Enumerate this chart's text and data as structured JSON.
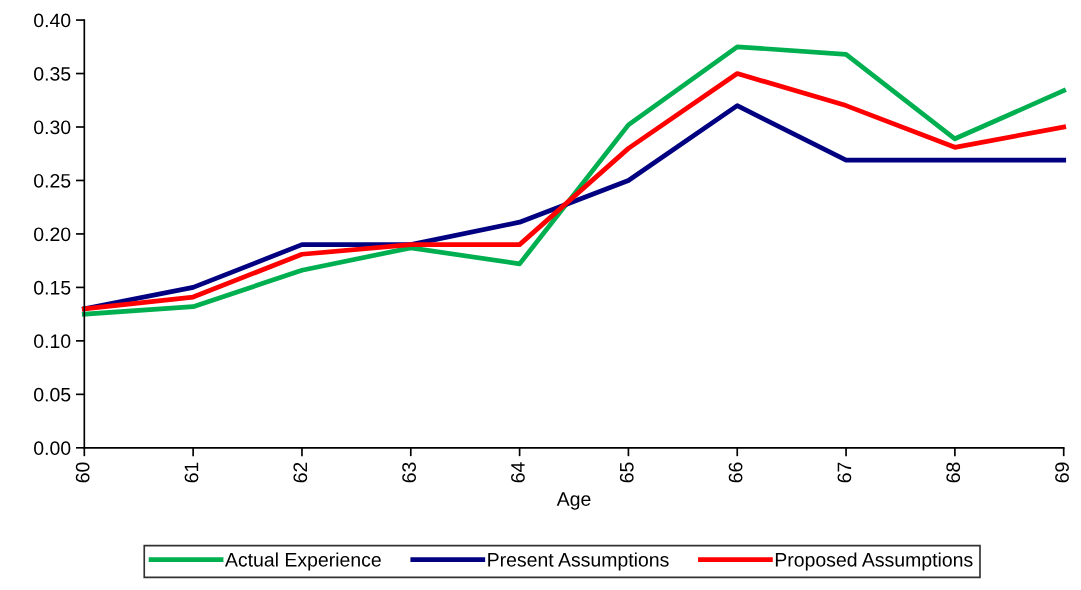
{
  "chart_data": {
    "type": "line",
    "xlabel": "Age",
    "x": [
      60,
      61,
      62,
      63,
      64,
      65,
      66,
      67,
      68,
      69
    ],
    "xlim": [
      60,
      69
    ],
    "xticks": [
      60,
      61,
      62,
      63,
      64,
      65,
      66,
      67,
      68,
      69
    ],
    "ylim": [
      0,
      0.4
    ],
    "yticks": [
      {
        "value": 0,
        "label": "0.00"
      },
      {
        "value": 0.05,
        "label": "0.05"
      },
      {
        "value": 0.1,
        "label": "0.10"
      },
      {
        "value": 0.15,
        "label": "0.15"
      },
      {
        "value": 0.2,
        "label": "0.20"
      },
      {
        "value": 0.25,
        "label": "0.25"
      },
      {
        "value": 0.3,
        "label": "0.30"
      },
      {
        "value": 0.35,
        "label": "0.35"
      },
      {
        "value": 0.4,
        "label": "0.40"
      }
    ],
    "series": [
      {
        "name": "Actual Experience",
        "color": "#00b050",
        "values": [
          0.125,
          0.132,
          0.166,
          0.187,
          0.172,
          0.302,
          0.375,
          0.368,
          0.289,
          0.334
        ]
      },
      {
        "name": "Present Assumptions",
        "color": "#000080",
        "values": [
          0.13,
          0.15,
          0.19,
          0.19,
          0.211,
          0.25,
          0.32,
          0.269,
          0.269,
          0.269
        ]
      },
      {
        "name": "Proposed Assumptions",
        "color": "#ff0000",
        "values": [
          0.13,
          0.141,
          0.181,
          0.19,
          0.19,
          0.28,
          0.35,
          0.32,
          0.281,
          0.3
        ]
      }
    ],
    "legend": "bottom",
    "grid": false,
    "marker": "none",
    "line_style": "solid"
  }
}
